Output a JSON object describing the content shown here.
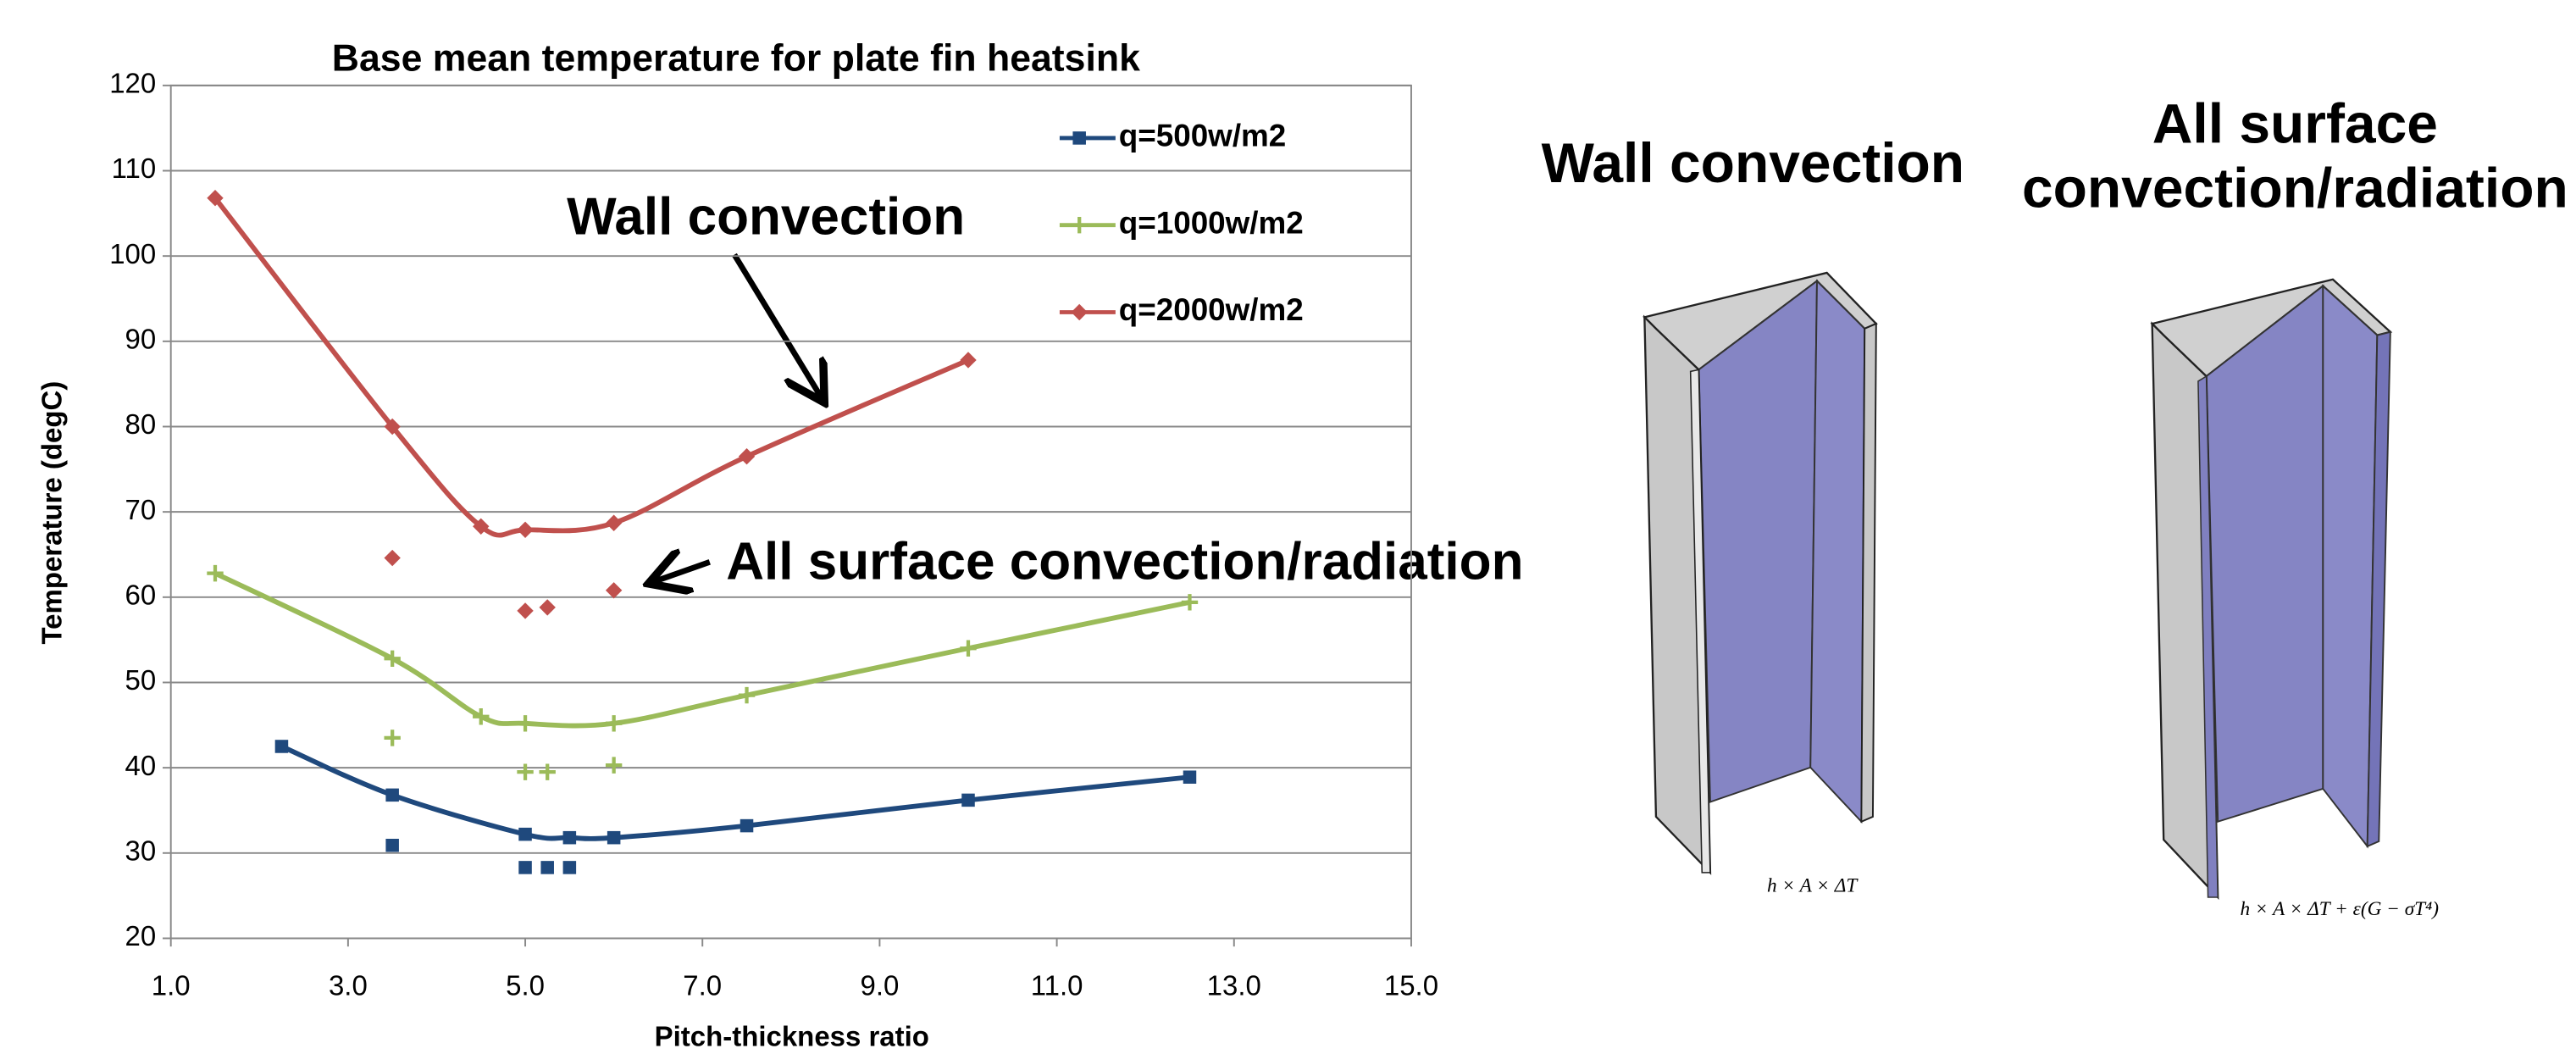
{
  "chart_data": {
    "type": "line",
    "title": "Base mean temperature for plate fin heatsink",
    "x_label": "Pitch-thickness ratio",
    "y_label": "Temperature (degC)",
    "xlim": [
      1,
      15
    ],
    "ylim": [
      20,
      120
    ],
    "xticks": [
      {
        "value": 1,
        "label": "1.0"
      },
      {
        "value": 3,
        "label": "3.0"
      },
      {
        "value": 5,
        "label": "5.0"
      },
      {
        "value": 7,
        "label": "7.0"
      },
      {
        "value": 9,
        "label": "9.0"
      },
      {
        "value": 11,
        "label": "11.0"
      },
      {
        "value": 13,
        "label": "13.0"
      },
      {
        "value": 15,
        "label": "15.0"
      }
    ],
    "yticks": [
      20,
      30,
      40,
      50,
      60,
      70,
      80,
      90,
      100,
      110,
      120
    ],
    "grid": true,
    "annotations": [
      "Wall convection",
      "All surface convection/radiation"
    ],
    "series": [
      {
        "name": "q=500w/m2",
        "color": "#1f497d",
        "marker": "square",
        "x": [
          2.25,
          3.5,
          5,
          5.5,
          6,
          7.5,
          10,
          12.5
        ],
        "values": [
          42.5,
          36.8,
          32.2,
          31.8,
          31.8,
          33.2,
          36.2,
          38.9
        ],
        "scatter_x": [
          3.5,
          5,
          5.25,
          5.5
        ],
        "scatter_values": [
          30.9,
          28.3,
          28.3,
          28.3
        ]
      },
      {
        "name": "q=1000w/m2",
        "color": "#9bbb59",
        "marker": "plus",
        "x": [
          1.5,
          3.5,
          4.5,
          5,
          6,
          7.5,
          10,
          12.5
        ],
        "values": [
          62.8,
          52.8,
          46,
          45.2,
          45.2,
          48.5,
          54,
          59.4
        ],
        "scatter_x": [
          3.5,
          5,
          5.25,
          6
        ],
        "scatter_values": [
          43.5,
          39.5,
          39.5,
          40.3
        ]
      },
      {
        "name": "q=2000w/m2",
        "color": "#c0504d",
        "marker": "diamond",
        "x": [
          1.5,
          3.5,
          4.5,
          5,
          6,
          7.5,
          10
        ],
        "values": [
          106.8,
          80,
          68.3,
          67.9,
          68.7,
          76.5,
          87.8
        ],
        "scatter_x": [
          3.5,
          5,
          5.25,
          6
        ],
        "scatter_values": [
          64.6,
          58.4,
          58.8,
          60.8
        ]
      }
    ]
  },
  "diagrams": [
    {
      "title_lines": [
        "Wall convection"
      ],
      "formula": "h × A × ΔT"
    },
    {
      "title_lines": [
        "All surface",
        "convection/radiation"
      ],
      "formula": "h × A × ΔT + ε(G − σT⁴)"
    }
  ]
}
